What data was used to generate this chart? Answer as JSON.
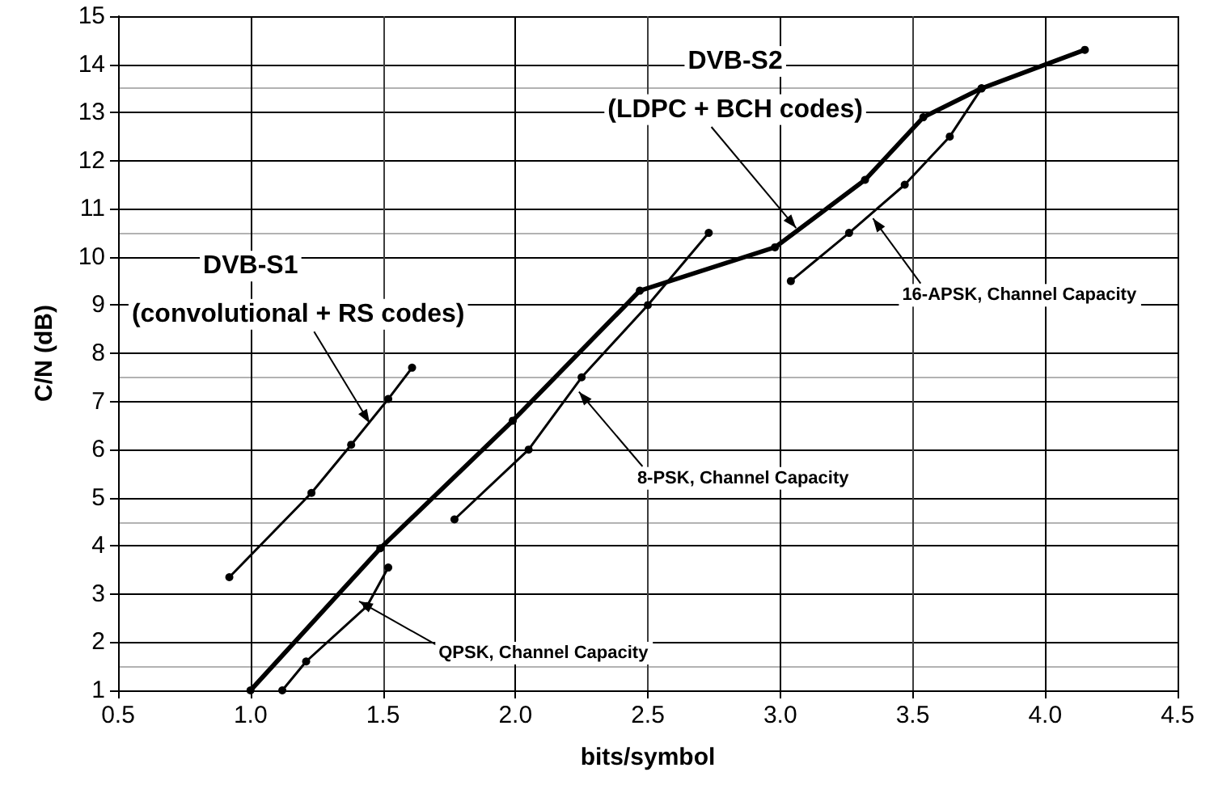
{
  "chart_data": {
    "type": "line",
    "xlabel": "bits/symbol",
    "ylabel": "C/N (dB)",
    "series": [
      {
        "color": "#000000",
        "x": [
          0.92,
          1.23,
          1.38,
          1.52,
          1.61
        ],
        "values": [
          3.35,
          5.1,
          6.1,
          7.05,
          7.7
        ]
      },
      {
        "color": "#000000",
        "x": [
          1.0,
          1.49,
          1.99,
          2.47,
          2.98,
          3.32,
          3.54,
          3.76,
          4.15
        ],
        "values": [
          1.0,
          3.95,
          6.6,
          9.3,
          10.2,
          11.6,
          12.9,
          13.5,
          14.3
        ]
      },
      {
        "color": "#000000",
        "x": [
          1.12,
          1.21,
          1.44,
          1.52
        ],
        "values": [
          1.0,
          1.6,
          2.75,
          3.55
        ]
      },
      {
        "color": "#000000",
        "x": [
          1.77,
          2.05,
          2.25,
          2.5,
          2.73
        ],
        "values": [
          4.55,
          6.0,
          7.5,
          9.0,
          10.5
        ]
      },
      {
        "color": "#000000",
        "x": [
          3.04,
          3.26,
          3.47,
          3.64,
          3.76
        ],
        "values": [
          9.5,
          10.5,
          11.5,
          12.5,
          13.5
        ]
      }
    ],
    "xlim": [
      0.5,
      4.5
    ],
    "xticks": [
      {
        "value": 0.5,
        "label": "0.5"
      },
      {
        "value": 1,
        "label": "1.0"
      },
      {
        "value": 1.5,
        "label": "1.5"
      },
      {
        "value": 2,
        "label": "2.0"
      },
      {
        "value": 2.5,
        "label": "2.5"
      },
      {
        "value": 3,
        "label": "3.0"
      },
      {
        "value": 3.5,
        "label": "3.5"
      },
      {
        "value": 4,
        "label": "4.0"
      },
      {
        "value": 4.5,
        "label": "4.5"
      }
    ],
    "ylim": [
      1,
      15
    ],
    "yticks": [
      1,
      2,
      3,
      4,
      5,
      6,
      7,
      8,
      9,
      10,
      11,
      12,
      13,
      14,
      15
    ],
    "grid": true,
    "marker": "circle",
    "line_style": "solid",
    "annotations": [
      "DVB-S2",
      {
        "text": "(LDPC + BCH codes)",
        "x": 3.06,
        "y": 10.6
      },
      "DVB-S1",
      {
        "text": "(convolutional + RS codes)",
        "x": 1.45,
        "y": 6.55
      },
      {
        "text": "16-APSK, Channel Capacity",
        "x": 3.35,
        "y": 10.8
      },
      {
        "text": "8-PSK, Channel Capacity",
        "x": 2.24,
        "y": 7.2
      },
      {
        "text": "QPSK, Channel Capacity",
        "x": 1.41,
        "y": 2.85
      }
    ]
  }
}
